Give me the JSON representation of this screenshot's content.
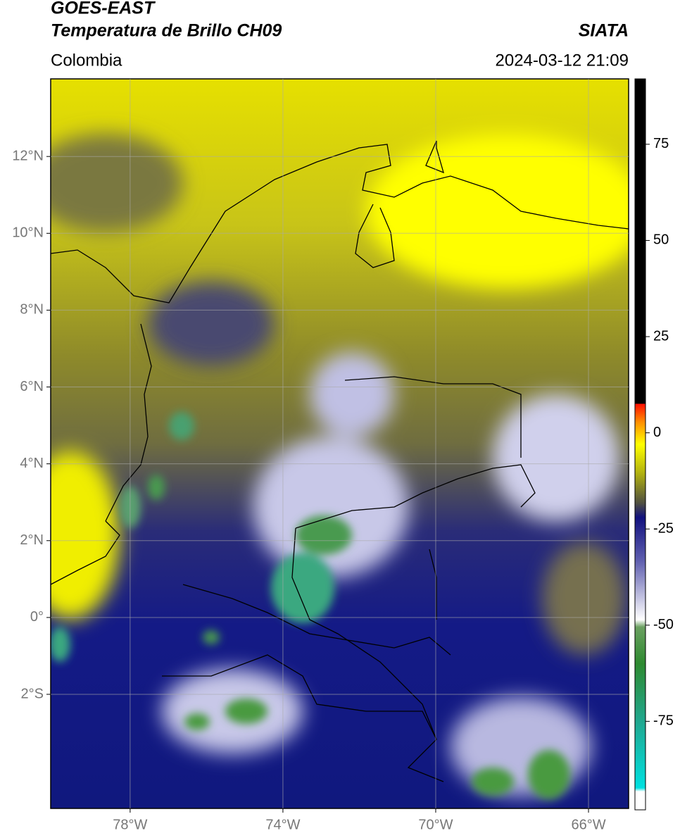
{
  "header": {
    "title": "GOES-EAST",
    "subtitle": "Temperatura de Brillo CH09",
    "region": "Colombia",
    "source": "SIATA",
    "datetime": "2024-03-12 21:09"
  },
  "map": {
    "lonlim": [
      -80.08,
      -64.95
    ],
    "latlim": [
      -4.97,
      14.02
    ],
    "lat_ticks": [
      {
        "value": 12,
        "label": "12°N"
      },
      {
        "value": 10,
        "label": "10°N"
      },
      {
        "value": 8,
        "label": "8°N"
      },
      {
        "value": 6,
        "label": "6°N"
      },
      {
        "value": 4,
        "label": "4°N"
      },
      {
        "value": 2,
        "label": "2°N"
      },
      {
        "value": 0,
        "label": "0°"
      },
      {
        "value": -2,
        "label": "2°S"
      }
    ],
    "lon_ticks": [
      {
        "value": -78,
        "label": "78°W"
      },
      {
        "value": -74,
        "label": "74°W"
      },
      {
        "value": -70,
        "label": "70°W"
      },
      {
        "value": -66,
        "label": "66°W"
      }
    ],
    "grid": true
  },
  "colorbar": {
    "lim": [
      -98,
      92
    ],
    "ticks": [
      75,
      50,
      25,
      0,
      -25,
      -50,
      -75
    ]
  }
}
